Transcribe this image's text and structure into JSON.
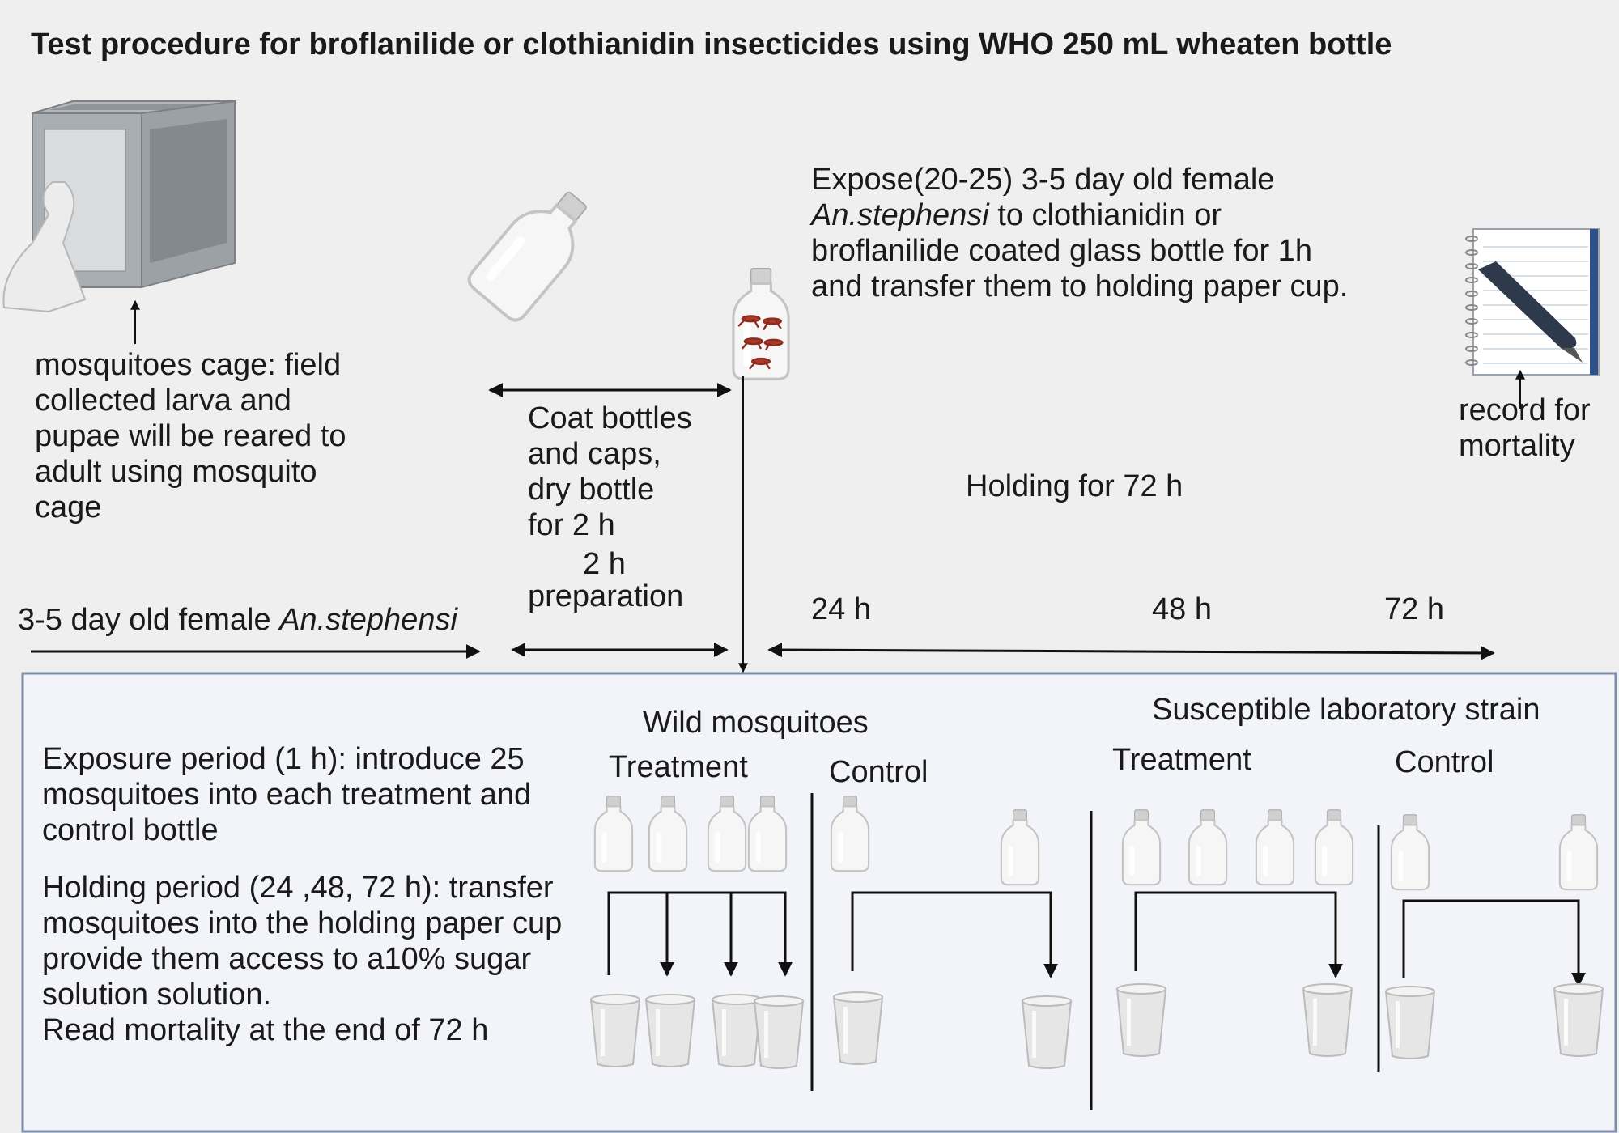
{
  "title": "Test procedure for broflanilide or clothianidin insecticides using WHO  250 mL wheaten bottle",
  "cage": {
    "caption_lines": [
      " mosquitoes cage: field",
      "collected larva and",
      "pupae will be reared to",
      "adult using mosquito",
      "cage"
    ]
  },
  "coat": {
    "lines": [
      "Coat bottles",
      "and caps,",
      "dry bottle",
      "for 2 h"
    ],
    "duration": "2 h",
    "duration_label": "preparation"
  },
  "expose": {
    "line1": "Expose(20-25) 3-5 day old female",
    "line2_species": "An.stephensi",
    "line2_rest": " to  clothianidin or",
    "line3": "broflanilide  coated glass bottle for 1h",
    "line4": "and transfer them to holding paper cup."
  },
  "record": {
    "lines": [
      "record for",
      "mortality"
    ]
  },
  "holding_label": "Holding for 72 h",
  "timeline": {
    "female_label_prefix": "3-5 day old female ",
    "female_label_species": "An.stephensi",
    "marks": [
      "24 h",
      "48 h",
      "72 h"
    ]
  },
  "box": {
    "exposure_lines": [
      "Exposure period (1 h): introduce 25",
      "mosquitoes into each treatment and",
      "control bottle"
    ],
    "holding_lines": [
      "Holding period (24 ,48, 72 h): transfer",
      "mosquitoes into the holding paper cup",
      "provide them access to a10% sugar",
      "solution solution.",
      "Read mortality at the end of 72 h"
    ],
    "wild_title": "Wild mosquitoes",
    "lab_title": "Susceptible laboratory strain",
    "treatment": "Treatment",
    "control": "Control"
  }
}
